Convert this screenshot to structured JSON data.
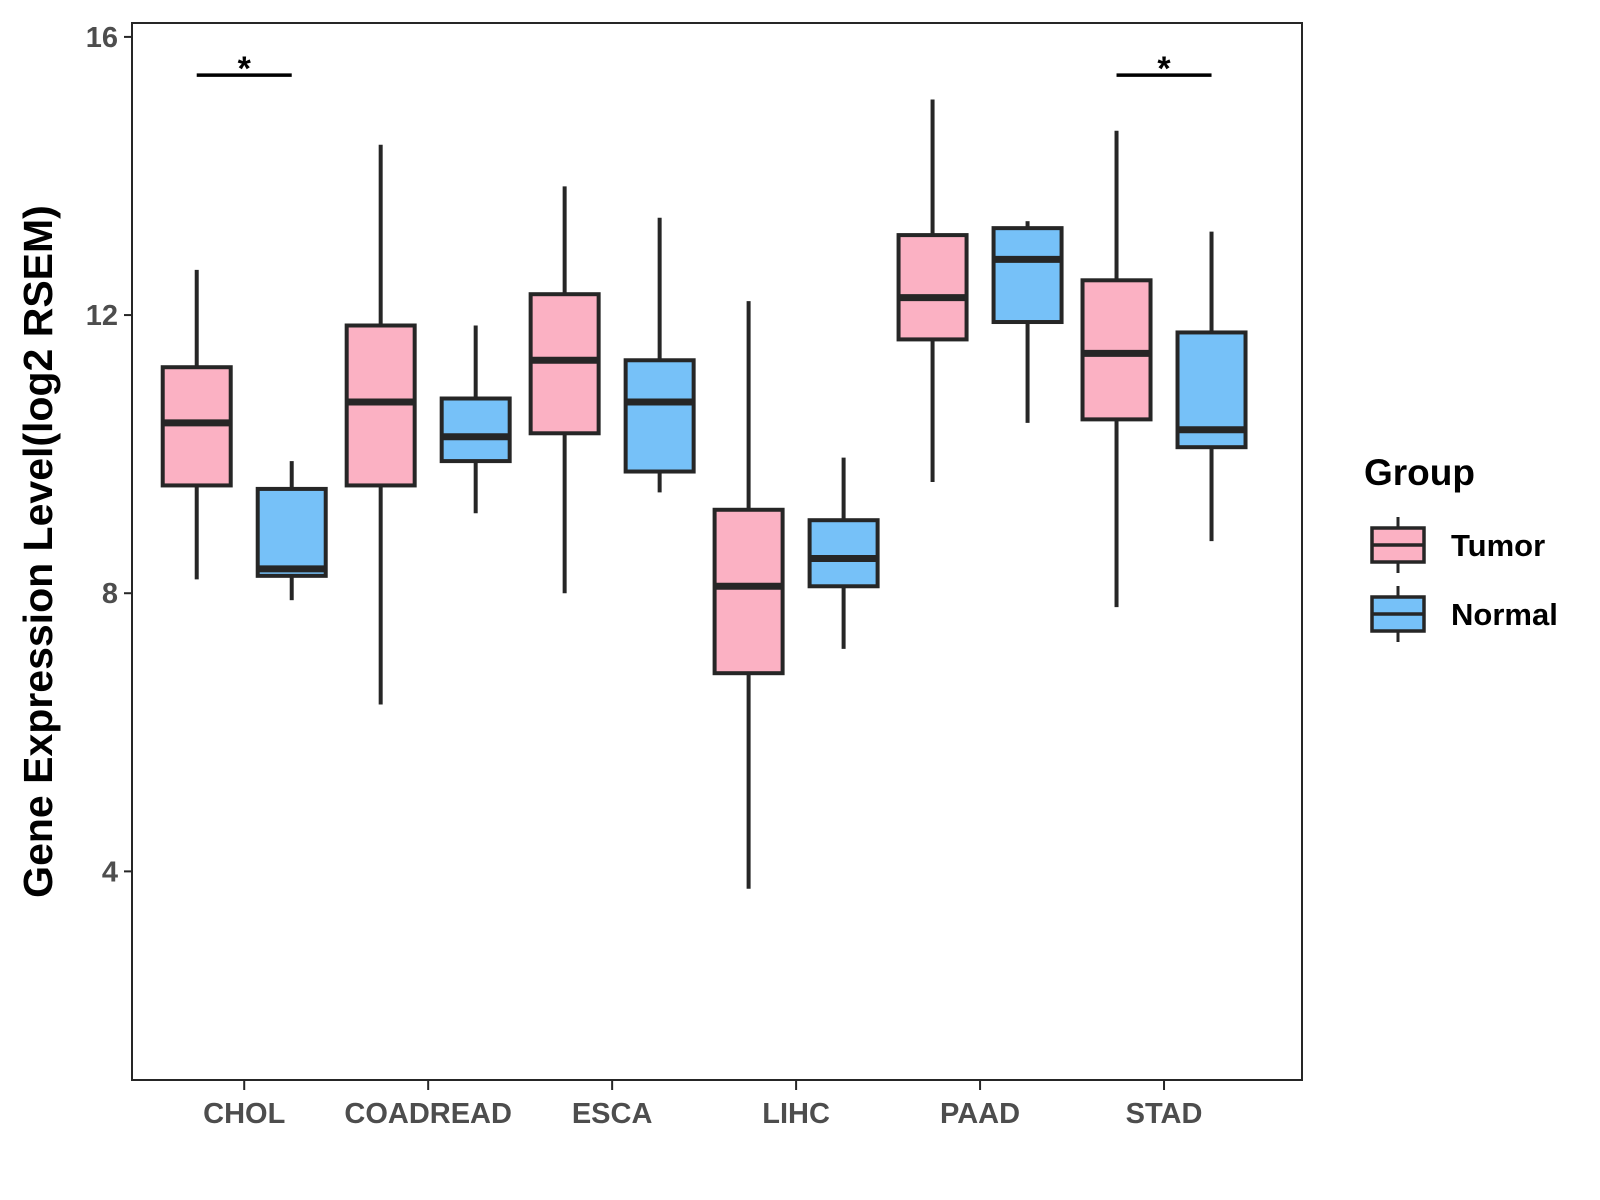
{
  "chart_data": {
    "type": "boxplot",
    "title": "",
    "xlabel": "",
    "ylabel": "Gene Expression Level(log2 RSEM)",
    "ylim": [
      1,
      16.2
    ],
    "yticks": [
      4,
      8,
      12,
      16
    ],
    "categories": [
      "CHOL",
      "COADREAD",
      "ESCA",
      "LIHC",
      "PAAD",
      "STAD"
    ],
    "legend": {
      "title": "Group",
      "position": "right"
    },
    "series": [
      {
        "name": "Tumor",
        "color": "#FBB1C3",
        "boxes": [
          {
            "category": "CHOL",
            "whisker_low": 8.2,
            "q1": 9.55,
            "median": 10.45,
            "q3": 11.25,
            "whisker_high": 12.65
          },
          {
            "category": "COADREAD",
            "whisker_low": 6.4,
            "q1": 9.55,
            "median": 10.75,
            "q3": 11.85,
            "whisker_high": 14.45
          },
          {
            "category": "ESCA",
            "whisker_low": 8.0,
            "q1": 10.3,
            "median": 11.35,
            "q3": 12.3,
            "whisker_high": 13.85
          },
          {
            "category": "LIHC",
            "whisker_low": 3.75,
            "q1": 6.85,
            "median": 8.1,
            "q3": 9.2,
            "whisker_high": 12.2
          },
          {
            "category": "PAAD",
            "whisker_low": 9.6,
            "q1": 11.65,
            "median": 12.25,
            "q3": 13.15,
            "whisker_high": 15.1
          },
          {
            "category": "STAD",
            "whisker_low": 7.8,
            "q1": 10.5,
            "median": 11.45,
            "q3": 12.5,
            "whisker_high": 14.65
          }
        ]
      },
      {
        "name": "Normal",
        "color": "#76C1F8",
        "boxes": [
          {
            "category": "CHOL",
            "whisker_low": 7.9,
            "q1": 8.25,
            "median": 8.35,
            "q3": 9.5,
            "whisker_high": 9.9
          },
          {
            "category": "COADREAD",
            "whisker_low": 9.15,
            "q1": 9.9,
            "median": 10.25,
            "q3": 10.8,
            "whisker_high": 11.85
          },
          {
            "category": "ESCA",
            "whisker_low": 9.45,
            "q1": 9.75,
            "median": 10.75,
            "q3": 11.35,
            "whisker_high": 13.4
          },
          {
            "category": "LIHC",
            "whisker_low": 7.2,
            "q1": 8.1,
            "median": 8.5,
            "q3": 9.05,
            "whisker_high": 9.95
          },
          {
            "category": "PAAD",
            "whisker_low": 10.45,
            "q1": 11.9,
            "median": 12.8,
            "q3": 13.25,
            "whisker_high": 13.35
          },
          {
            "category": "STAD",
            "whisker_low": 8.75,
            "q1": 10.1,
            "median": 10.35,
            "q3": 11.75,
            "whisker_high": 13.2
          }
        ]
      }
    ],
    "annotations": [
      {
        "category": "CHOL",
        "label": "*",
        "y": 15.45
      },
      {
        "category": "STAD",
        "label": "*",
        "y": 15.45
      }
    ]
  }
}
